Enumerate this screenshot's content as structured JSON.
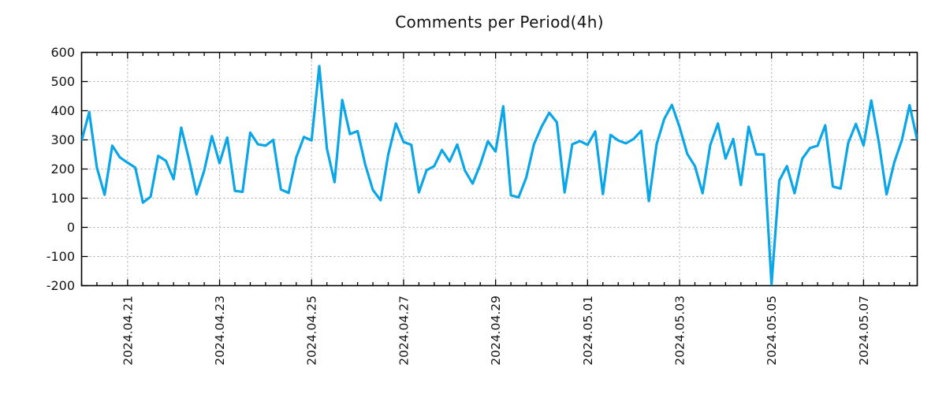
{
  "chart_data": {
    "type": "line",
    "title": "Comments per Period(4h)",
    "series_name": "comments",
    "line_color": "#0aa6e8",
    "background_color": "#ffffff",
    "grid": true,
    "grid_color": "#a8a8a8",
    "axis_color": "#000000",
    "text_color": "#141414",
    "legend": "none",
    "x_start": "2024.04.20 00:00",
    "interval_hours": 4,
    "ylim": [
      -200,
      600
    ],
    "y_ticks": [
      -200,
      -100,
      0,
      100,
      200,
      300,
      400,
      500,
      600
    ],
    "x_tick_labels": [
      "2024.04.21",
      "2024.04.23",
      "2024.04.25",
      "2024.04.27",
      "2024.04.29",
      "2024.05.01",
      "2024.05.03",
      "2024.05.05",
      "2024.05.07"
    ],
    "x_tick_indices": [
      6,
      18,
      30,
      42,
      54,
      66,
      78,
      90,
      102
    ],
    "minor_tick_every_points": 2,
    "values": [
      297,
      395,
      205,
      112,
      280,
      240,
      222,
      205,
      85,
      105,
      245,
      228,
      165,
      342,
      235,
      113,
      195,
      313,
      220,
      308,
      125,
      122,
      325,
      285,
      280,
      300,
      130,
      118,
      240,
      310,
      298,
      553,
      270,
      155,
      437,
      320,
      330,
      215,
      128,
      93,
      250,
      356,
      293,
      283,
      120,
      196,
      210,
      265,
      226,
      284,
      195,
      150,
      215,
      295,
      260,
      415,
      110,
      103,
      170,
      285,
      345,
      393,
      360,
      120,
      285,
      296,
      283,
      329,
      114,
      317,
      298,
      288,
      303,
      331,
      90,
      285,
      372,
      420,
      344,
      252,
      210,
      117,
      282,
      356,
      236,
      303,
      145,
      345,
      250,
      250,
      -195,
      160,
      210,
      117,
      235,
      272,
      280,
      350,
      140,
      133,
      290,
      355,
      281,
      435,
      290,
      113,
      222,
      300,
      419,
      300
    ]
  }
}
